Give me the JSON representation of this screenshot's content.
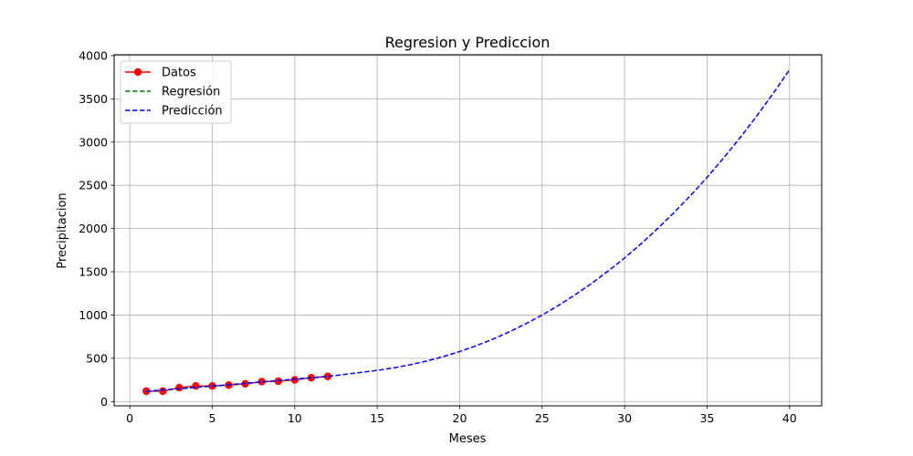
{
  "chart_data": {
    "type": "line",
    "title": "Regresion y Prediccion",
    "xlabel": "Meses",
    "ylabel": "Precipitacion",
    "xlim": [
      -0.95,
      41.95
    ],
    "ylim": [
      -50,
      4010
    ],
    "xticks": [
      0,
      5,
      10,
      15,
      20,
      25,
      30,
      35,
      40
    ],
    "yticks": [
      0,
      500,
      1000,
      1500,
      2000,
      2500,
      3000,
      3500,
      4000
    ],
    "grid": true,
    "legend_position": "top-left",
    "series": [
      {
        "name": "Datos",
        "style": "solid-line-with-markers",
        "color": "#ff0000",
        "x": [
          1,
          2,
          3,
          4,
          5,
          6,
          7,
          8,
          9,
          10,
          11,
          12
        ],
        "y": [
          120,
          120,
          160,
          180,
          180,
          190,
          205,
          230,
          235,
          250,
          275,
          290
        ]
      },
      {
        "name": "Regresión",
        "style": "dashed",
        "color": "#008000",
        "x": [
          1,
          2,
          3,
          4,
          5,
          6,
          7,
          8,
          9,
          10,
          11,
          12
        ],
        "y": [
          118,
          133,
          148,
          164,
          179,
          194,
          210,
          226,
          242,
          258,
          274,
          290
        ]
      },
      {
        "name": "Predicción",
        "style": "dashed",
        "color": "#0000ff",
        "x": [
          1,
          2,
          3,
          4,
          5,
          6,
          7,
          8,
          9,
          10,
          11,
          12,
          13,
          14,
          15,
          16,
          17,
          18,
          19,
          20,
          21,
          22,
          23,
          24,
          25,
          26,
          27,
          28,
          29,
          30,
          31,
          32,
          33,
          34,
          35,
          36,
          37,
          38,
          39,
          40
        ],
        "y": [
          118,
          133,
          148,
          164,
          179,
          194,
          210,
          226,
          242,
          258,
          274,
          290,
          313,
          336,
          360,
          389,
          425,
          468,
          519,
          578,
          645,
          720,
          805,
          898,
          1000,
          1112,
          1234,
          1366,
          1508,
          1660,
          1824,
          1999,
          2185,
          2382,
          2592,
          2815,
          3050,
          3299,
          3560,
          3836
        ]
      }
    ]
  }
}
